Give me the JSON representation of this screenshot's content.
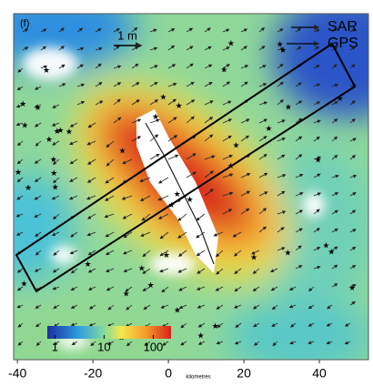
{
  "panel_label": "(f)",
  "scale_label": "1 m",
  "legend": [
    "SAR",
    "GPS"
  ],
  "colorbar": {
    "ticks": [
      1,
      10,
      100
    ],
    "lim": [
      0.7,
      230
    ],
    "log": true
  },
  "x_axis": {
    "label": "kilometres",
    "lim": [
      -41,
      53
    ],
    "ticks": [
      -40,
      -20,
      0,
      20,
      40
    ]
  }
}
